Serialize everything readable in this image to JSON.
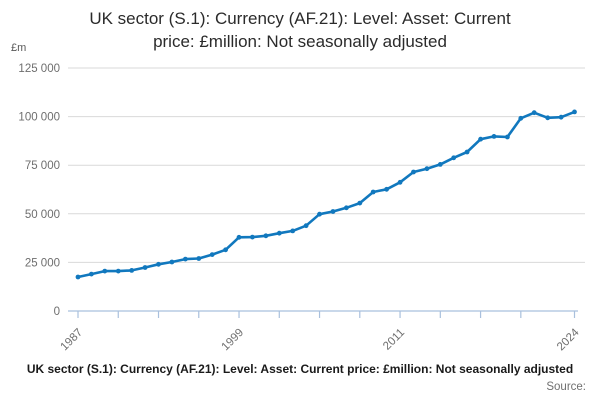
{
  "page": {
    "title_lines": [
      "UK sector (S.1): Currency (AF.21): Level: Asset: Current",
      "price: £million: Not seasonally adjusted"
    ]
  },
  "chart_data": {
    "type": "line",
    "title": "UK sector (S.1): Currency (AF.21): Level: Asset: Current price: £million: Not seasonally adjusted",
    "unit_label": "£m",
    "xlabel": "",
    "ylabel": "£m",
    "ylim": [
      0,
      125000
    ],
    "grid": "horizontal-only",
    "legend_position": "none",
    "line_color": "#1178be",
    "gridline_color": "#d9d9d9",
    "axis_color": "#a9c0dd",
    "tick_label_color": "#6e6e6e",
    "ytick_values": [
      0,
      25000,
      50000,
      75000,
      100000,
      125000
    ],
    "ytick_labels": [
      "0",
      "25 000",
      "50 000",
      "75 000",
      "100 000",
      "125 000"
    ],
    "xtick_values": [
      1987,
      1990,
      1993,
      1996,
      1999,
      2002,
      2005,
      2008,
      2011,
      2014,
      2017,
      2020,
      2024
    ],
    "xtick_labeled": [
      1987,
      1999,
      2011,
      2024
    ],
    "x": [
      1987,
      1988,
      1989,
      1990,
      1991,
      1992,
      1993,
      1994,
      1995,
      1996,
      1997,
      1998,
      1999,
      2000,
      2001,
      2002,
      2003,
      2004,
      2005,
      2006,
      2007,
      2008,
      2009,
      2010,
      2011,
      2012,
      2013,
      2014,
      2015,
      2016,
      2017,
      2018,
      2019,
      2020,
      2021,
      2022,
      2023,
      2024
    ],
    "values": [
      17500,
      19000,
      20500,
      20500,
      20900,
      22400,
      24000,
      25200,
      26700,
      27000,
      29000,
      31500,
      37900,
      38000,
      38700,
      40000,
      41200,
      43900,
      49800,
      51200,
      53100,
      55500,
      61200,
      62600,
      66200,
      71500,
      73200,
      75400,
      78800,
      81800,
      88400,
      89800,
      89500,
      99100,
      102000,
      99400,
      99700,
      102400
    ]
  },
  "footer": {
    "caption": "UK sector (S.1): Currency (AF.21): Level: Asset: Current price: £million: Not seasonally adjusted",
    "source_label": "Source:"
  }
}
